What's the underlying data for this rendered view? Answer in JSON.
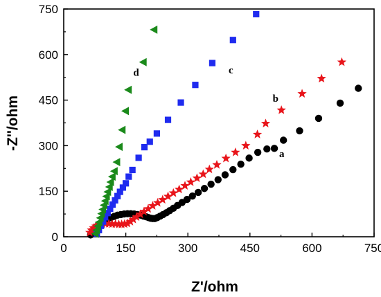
{
  "chart_data": {
    "type": "scatter",
    "xlabel": "Z'/ohm",
    "ylabel": "-Z''/ohm",
    "xlim": [
      0,
      750
    ],
    "ylim": [
      0,
      750
    ],
    "xticks": [
      0,
      150,
      300,
      450,
      600,
      750
    ],
    "yticks": [
      0,
      150,
      300,
      450,
      600,
      750
    ],
    "grid": false,
    "series": [
      {
        "name": "a",
        "color": "#000000",
        "marker": "circle",
        "points": [
          [
            65,
            6
          ],
          [
            68,
            14
          ],
          [
            72,
            22
          ],
          [
            77,
            30
          ],
          [
            83,
            38
          ],
          [
            90,
            45
          ],
          [
            98,
            52
          ],
          [
            106,
            58
          ],
          [
            114,
            63
          ],
          [
            122,
            67
          ],
          [
            130,
            71
          ],
          [
            138,
            73
          ],
          [
            146,
            75
          ],
          [
            154,
            76
          ],
          [
            162,
            76
          ],
          [
            170,
            75
          ],
          [
            178,
            73
          ],
          [
            186,
            71
          ],
          [
            193,
            68
          ],
          [
            199,
            66
          ],
          [
            205,
            63
          ],
          [
            210,
            61
          ],
          [
            215,
            60
          ],
          [
            220,
            60
          ],
          [
            226,
            63
          ],
          [
            233,
            68
          ],
          [
            240,
            73
          ],
          [
            248,
            79
          ],
          [
            256,
            86
          ],
          [
            265,
            94
          ],
          [
            275,
            103
          ],
          [
            286,
            113
          ],
          [
            298,
            123
          ],
          [
            311,
            134
          ],
          [
            325,
            146
          ],
          [
            340,
            159
          ],
          [
            356,
            173
          ],
          [
            373,
            188
          ],
          [
            390,
            204
          ],
          [
            409,
            221
          ],
          [
            428,
            239
          ],
          [
            448,
            259
          ],
          [
            469,
            278
          ],
          [
            491,
            289
          ],
          [
            509,
            291
          ],
          [
            531,
            318
          ],
          [
            570,
            349
          ],
          [
            616,
            390
          ],
          [
            668,
            440
          ],
          [
            712,
            489
          ]
        ]
      },
      {
        "name": "b",
        "color": "#e8151b",
        "marker": "star",
        "points": [
          [
            63,
            14
          ],
          [
            67,
            22
          ],
          [
            72,
            29
          ],
          [
            78,
            35
          ],
          [
            85,
            39
          ],
          [
            93,
            42
          ],
          [
            101,
            43
          ],
          [
            109,
            43
          ],
          [
            117,
            42
          ],
          [
            125,
            42
          ],
          [
            133,
            41
          ],
          [
            140,
            41
          ],
          [
            147,
            42
          ],
          [
            154,
            44
          ],
          [
            161,
            50
          ],
          [
            168,
            57
          ],
          [
            176,
            65
          ],
          [
            185,
            74
          ],
          [
            194,
            83
          ],
          [
            204,
            92
          ],
          [
            215,
            102
          ],
          [
            227,
            112
          ],
          [
            239,
            122
          ],
          [
            252,
            133
          ],
          [
            265,
            144
          ],
          [
            279,
            156
          ],
          [
            293,
            168
          ],
          [
            307,
            180
          ],
          [
            322,
            193
          ],
          [
            337,
            206
          ],
          [
            352,
            222
          ],
          [
            370,
            237
          ],
          [
            392,
            258
          ],
          [
            415,
            278
          ],
          [
            440,
            300
          ],
          [
            468,
            337
          ],
          [
            488,
            373
          ],
          [
            526,
            417
          ],
          [
            576,
            471
          ],
          [
            623,
            521
          ],
          [
            672,
            575
          ]
        ]
      },
      {
        "name": "c",
        "color": "#1f2bef",
        "marker": "square",
        "points": [
          [
            80,
            10
          ],
          [
            85,
            22
          ],
          [
            90,
            36
          ],
          [
            95,
            50
          ],
          [
            100,
            64
          ],
          [
            106,
            78
          ],
          [
            112,
            92
          ],
          [
            118,
            106
          ],
          [
            124,
            120
          ],
          [
            130,
            134
          ],
          [
            136,
            148
          ],
          [
            143,
            162
          ],
          [
            150,
            176
          ],
          [
            157,
            198
          ],
          [
            166,
            220
          ],
          [
            181,
            260
          ],
          [
            195,
            295
          ],
          [
            208,
            313
          ],
          [
            225,
            340
          ],
          [
            252,
            385
          ],
          [
            283,
            442
          ],
          [
            318,
            500
          ],
          [
            359,
            572
          ],
          [
            409,
            648
          ],
          [
            465,
            733
          ]
        ]
      },
      {
        "name": "d",
        "color": "#1b8a1b",
        "marker": "triangle-left",
        "points": [
          [
            76,
            10
          ],
          [
            79,
            22
          ],
          [
            82,
            35
          ],
          [
            85,
            48
          ],
          [
            88,
            62
          ],
          [
            91,
            76
          ],
          [
            94,
            90
          ],
          [
            97,
            104
          ],
          [
            100,
            118
          ],
          [
            103,
            133
          ],
          [
            106,
            148
          ],
          [
            110,
            164
          ],
          [
            113,
            180
          ],
          [
            117,
            198
          ],
          [
            122,
            216
          ],
          [
            128,
            246
          ],
          [
            134,
            296
          ],
          [
            141,
            352
          ],
          [
            149,
            414
          ],
          [
            156,
            484
          ],
          [
            192,
            575
          ],
          [
            218,
            682
          ]
        ]
      }
    ],
    "annotations": [
      {
        "text": "a",
        "x": 527,
        "y": 262
      },
      {
        "text": "b",
        "x": 512,
        "y": 445
      },
      {
        "text": "c",
        "x": 404,
        "y": 538
      },
      {
        "text": "d",
        "x": 175,
        "y": 530
      }
    ]
  }
}
